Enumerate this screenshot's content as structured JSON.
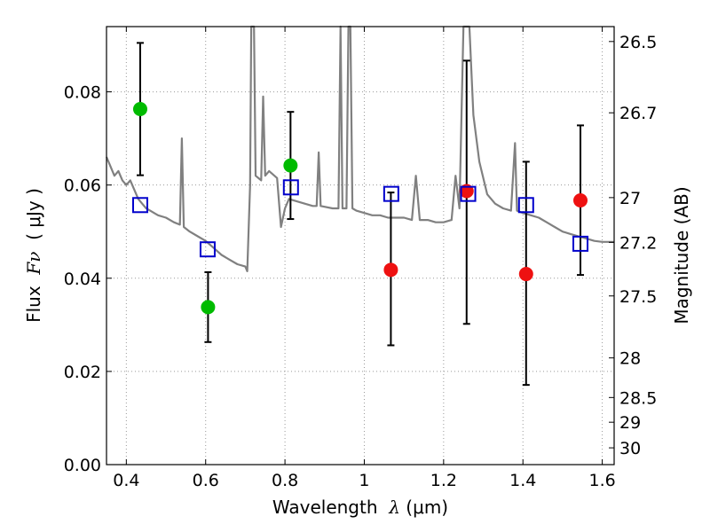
{
  "chart_data": {
    "type": "scatter",
    "xlabel_prefix": "Wavelength",
    "xlabel_symbol": "λ",
    "xlabel_unit": "(μm)",
    "ylabel_prefix": "Flux",
    "ylabel_symbol": "Fν",
    "ylabel_unit": "( μJy )",
    "y2label": "Magnitude (AB)",
    "xlim": [
      0.35,
      1.63
    ],
    "ylim": [
      0.0,
      0.094
    ],
    "grid": true,
    "x_ticks": [
      0.4,
      0.6,
      0.8,
      1.0,
      1.2,
      1.4,
      1.6
    ],
    "x_tick_labels": [
      "0.4",
      "0.6",
      "0.8",
      "1",
      "1.2",
      "1.4",
      "1.6"
    ],
    "y_ticks": [
      0.0,
      0.02,
      0.04,
      0.06,
      0.08
    ],
    "y_tick_labels": [
      "0.00",
      "0.02",
      "0.04",
      "0.06",
      "0.08"
    ],
    "y2_ticks": [
      {
        "label": "26.5",
        "flux": 0.0908
      },
      {
        "label": "26.7",
        "flux": 0.0755
      },
      {
        "label": "27",
        "flux": 0.0573
      },
      {
        "label": "27.2",
        "flux": 0.0477
      },
      {
        "label": "27.5",
        "flux": 0.0362
      },
      {
        "label": "28",
        "flux": 0.0229
      },
      {
        "label": "28.5",
        "flux": 0.0144
      },
      {
        "label": "29",
        "flux": 0.0091
      },
      {
        "label": "30",
        "flux": 0.0036
      }
    ],
    "colors": {
      "template": "#808080",
      "green": "#00bb00",
      "red": "#ee1111",
      "model": "#0000cc",
      "errorbar": "#000000",
      "grid": "#999999"
    },
    "series": [
      {
        "marker": "circle",
        "color": "#00bb00",
        "points": [
          {
            "x": 0.435,
            "y": 0.0763,
            "ylo": 0.0621,
            "yhi": 0.0905
          },
          {
            "x": 0.606,
            "y": 0.0338,
            "ylo": 0.0263,
            "yhi": 0.0413
          },
          {
            "x": 0.814,
            "y": 0.0642,
            "ylo": 0.0527,
            "yhi": 0.0757
          }
        ]
      },
      {
        "marker": "circle",
        "color": "#ee1111",
        "points": [
          {
            "x": 1.067,
            "y": 0.0418,
            "ylo": 0.0256,
            "yhi": 0.0584
          },
          {
            "x": 1.258,
            "y": 0.0587,
            "ylo": 0.0302,
            "yhi": 0.0867
          },
          {
            "x": 1.408,
            "y": 0.0409,
            "ylo": 0.0171,
            "yhi": 0.065
          },
          {
            "x": 1.545,
            "y": 0.0567,
            "ylo": 0.0407,
            "yhi": 0.0728
          }
        ]
      },
      {
        "marker": "open-square",
        "color": "#0000cc",
        "points": [
          {
            "x": 0.435,
            "y": 0.0557
          },
          {
            "x": 0.605,
            "y": 0.0462
          },
          {
            "x": 0.815,
            "y": 0.0595
          },
          {
            "x": 1.068,
            "y": 0.0581
          },
          {
            "x": 1.262,
            "y": 0.0581
          },
          {
            "x": 1.408,
            "y": 0.0557
          },
          {
            "x": 1.545,
            "y": 0.0474
          }
        ]
      }
    ],
    "template_spectrum": [
      [
        0.35,
        0.066
      ],
      [
        0.36,
        0.064
      ],
      [
        0.37,
        0.062
      ],
      [
        0.38,
        0.063
      ],
      [
        0.39,
        0.061
      ],
      [
        0.4,
        0.06
      ],
      [
        0.41,
        0.061
      ],
      [
        0.42,
        0.059
      ],
      [
        0.43,
        0.057
      ],
      [
        0.44,
        0.056
      ],
      [
        0.45,
        0.055
      ],
      [
        0.46,
        0.0545
      ],
      [
        0.47,
        0.054
      ],
      [
        0.48,
        0.0535
      ],
      [
        0.5,
        0.053
      ],
      [
        0.52,
        0.052
      ],
      [
        0.535,
        0.0515
      ],
      [
        0.54,
        0.07
      ],
      [
        0.545,
        0.051
      ],
      [
        0.56,
        0.05
      ],
      [
        0.58,
        0.049
      ],
      [
        0.6,
        0.048
      ],
      [
        0.62,
        0.0465
      ],
      [
        0.64,
        0.045
      ],
      [
        0.66,
        0.044
      ],
      [
        0.68,
        0.043
      ],
      [
        0.7,
        0.0425
      ],
      [
        0.705,
        0.0415
      ],
      [
        0.712,
        0.06
      ],
      [
        0.715,
        0.094
      ],
      [
        0.722,
        0.094
      ],
      [
        0.726,
        0.062
      ],
      [
        0.74,
        0.061
      ],
      [
        0.745,
        0.079
      ],
      [
        0.75,
        0.062
      ],
      [
        0.76,
        0.063
      ],
      [
        0.78,
        0.0615
      ],
      [
        0.79,
        0.051
      ],
      [
        0.8,
        0.055
      ],
      [
        0.81,
        0.057
      ],
      [
        0.83,
        0.0565
      ],
      [
        0.85,
        0.056
      ],
      [
        0.87,
        0.0555
      ],
      [
        0.88,
        0.0555
      ],
      [
        0.885,
        0.067
      ],
      [
        0.89,
        0.0555
      ],
      [
        0.92,
        0.055
      ],
      [
        0.935,
        0.055
      ],
      [
        0.94,
        0.094
      ],
      [
        0.945,
        0.055
      ],
      [
        0.955,
        0.055
      ],
      [
        0.96,
        0.094
      ],
      [
        0.965,
        0.094
      ],
      [
        0.97,
        0.055
      ],
      [
        0.98,
        0.0545
      ],
      [
        1.0,
        0.054
      ],
      [
        1.02,
        0.0535
      ],
      [
        1.04,
        0.0535
      ],
      [
        1.06,
        0.053
      ],
      [
        1.08,
        0.053
      ],
      [
        1.1,
        0.053
      ],
      [
        1.12,
        0.0525
      ],
      [
        1.13,
        0.062
      ],
      [
        1.14,
        0.0525
      ],
      [
        1.16,
        0.0525
      ],
      [
        1.18,
        0.052
      ],
      [
        1.2,
        0.052
      ],
      [
        1.22,
        0.0525
      ],
      [
        1.23,
        0.062
      ],
      [
        1.24,
        0.055
      ],
      [
        1.25,
        0.094
      ],
      [
        1.265,
        0.094
      ],
      [
        1.275,
        0.075
      ],
      [
        1.29,
        0.065
      ],
      [
        1.31,
        0.058
      ],
      [
        1.33,
        0.056
      ],
      [
        1.35,
        0.055
      ],
      [
        1.37,
        0.0545
      ],
      [
        1.38,
        0.069
      ],
      [
        1.385,
        0.0545
      ],
      [
        1.4,
        0.054
      ],
      [
        1.42,
        0.0535
      ],
      [
        1.44,
        0.053
      ],
      [
        1.46,
        0.052
      ],
      [
        1.48,
        0.051
      ],
      [
        1.5,
        0.05
      ],
      [
        1.52,
        0.0495
      ],
      [
        1.54,
        0.049
      ],
      [
        1.56,
        0.0485
      ],
      [
        1.58,
        0.048
      ],
      [
        1.6,
        0.0478
      ],
      [
        1.63,
        0.0478
      ]
    ]
  }
}
